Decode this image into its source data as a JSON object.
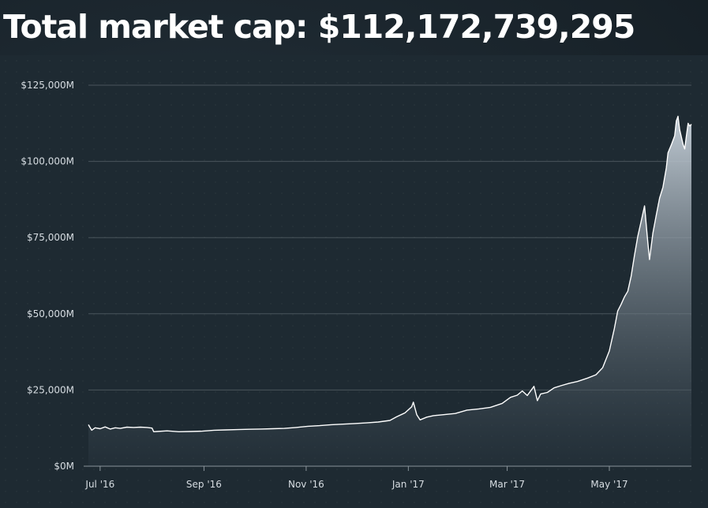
{
  "header": {
    "title": "Total market cap: $112,172,739,295"
  },
  "chart_data": {
    "type": "area",
    "title": "Total market cap: $112,172,739,295",
    "xlabel": "",
    "ylabel": "",
    "x_start": "2016-06-24",
    "x_end": "2017-06-19",
    "ylim": [
      0,
      125000
    ],
    "y_unit": "$M",
    "grid": true,
    "legend": "none",
    "x_ticks": [
      {
        "date": "2016-07-01",
        "label": "Jul '16"
      },
      {
        "date": "2016-09-01",
        "label": "Sep '16"
      },
      {
        "date": "2016-11-01",
        "label": "Nov '16"
      },
      {
        "date": "2017-01-01",
        "label": "Jan '17"
      },
      {
        "date": "2017-03-01",
        "label": "Mar '17"
      },
      {
        "date": "2017-05-01",
        "label": "May '17"
      }
    ],
    "y_ticks": [
      {
        "value": 0,
        "label": "$0M"
      },
      {
        "value": 25000,
        "label": "$25,000M"
      },
      {
        "value": 50000,
        "label": "$50,000M"
      },
      {
        "value": 75000,
        "label": "$75,000M"
      },
      {
        "value": 100000,
        "label": "$100,000M"
      },
      {
        "value": 125000,
        "label": "$125,000M"
      }
    ],
    "series": [
      {
        "name": "",
        "points": [
          [
            "2016-06-24",
            13600
          ],
          [
            "2016-06-26",
            11800
          ],
          [
            "2016-06-28",
            12600
          ],
          [
            "2016-07-01",
            12300
          ],
          [
            "2016-07-04",
            12900
          ],
          [
            "2016-07-07",
            12200
          ],
          [
            "2016-07-10",
            12600
          ],
          [
            "2016-07-13",
            12400
          ],
          [
            "2016-07-17",
            12800
          ],
          [
            "2016-07-21",
            12700
          ],
          [
            "2016-07-25",
            12800
          ],
          [
            "2016-07-29",
            12700
          ],
          [
            "2016-08-01",
            12500
          ],
          [
            "2016-08-02",
            11300
          ],
          [
            "2016-08-04",
            11400
          ],
          [
            "2016-08-10",
            11600
          ],
          [
            "2016-08-17",
            11300
          ],
          [
            "2016-08-24",
            11400
          ],
          [
            "2016-08-31",
            11500
          ],
          [
            "2016-09-07",
            11800
          ],
          [
            "2016-09-14",
            11900
          ],
          [
            "2016-09-21",
            12000
          ],
          [
            "2016-09-28",
            12100
          ],
          [
            "2016-10-05",
            12200
          ],
          [
            "2016-10-12",
            12300
          ],
          [
            "2016-10-19",
            12400
          ],
          [
            "2016-10-26",
            12700
          ],
          [
            "2016-11-02",
            13100
          ],
          [
            "2016-11-09",
            13300
          ],
          [
            "2016-11-16",
            13600
          ],
          [
            "2016-11-23",
            13800
          ],
          [
            "2016-11-30",
            14000
          ],
          [
            "2016-12-07",
            14200
          ],
          [
            "2016-12-14",
            14500
          ],
          [
            "2016-12-21",
            15000
          ],
          [
            "2016-12-25",
            16200
          ],
          [
            "2016-12-30",
            17500
          ],
          [
            "2017-01-03",
            19500
          ],
          [
            "2017-01-04",
            21000
          ],
          [
            "2017-01-06",
            16900
          ],
          [
            "2017-01-08",
            15200
          ],
          [
            "2017-01-12",
            16100
          ],
          [
            "2017-01-16",
            16600
          ],
          [
            "2017-01-22",
            16900
          ],
          [
            "2017-01-29",
            17300
          ],
          [
            "2017-02-05",
            18400
          ],
          [
            "2017-02-12",
            18800
          ],
          [
            "2017-02-19",
            19300
          ],
          [
            "2017-02-26",
            20600
          ],
          [
            "2017-03-03",
            22600
          ],
          [
            "2017-03-07",
            23300
          ],
          [
            "2017-03-10",
            24700
          ],
          [
            "2017-03-13",
            23200
          ],
          [
            "2017-03-17",
            26200
          ],
          [
            "2017-03-19",
            21500
          ],
          [
            "2017-03-21",
            23700
          ],
          [
            "2017-03-25",
            24200
          ],
          [
            "2017-03-29",
            25700
          ],
          [
            "2017-04-02",
            26400
          ],
          [
            "2017-04-07",
            27200
          ],
          [
            "2017-04-12",
            27800
          ],
          [
            "2017-04-18",
            28900
          ],
          [
            "2017-04-23",
            30000
          ],
          [
            "2017-04-27",
            32300
          ],
          [
            "2017-05-01",
            37800
          ],
          [
            "2017-05-04",
            45200
          ],
          [
            "2017-05-06",
            50900
          ],
          [
            "2017-05-08",
            53100
          ],
          [
            "2017-05-10",
            55500
          ],
          [
            "2017-05-12",
            57400
          ],
          [
            "2017-05-14",
            62300
          ],
          [
            "2017-05-16",
            69100
          ],
          [
            "2017-05-18",
            75500
          ],
          [
            "2017-05-20",
            80300
          ],
          [
            "2017-05-22",
            85400
          ],
          [
            "2017-05-24",
            73300
          ],
          [
            "2017-05-25",
            67800
          ],
          [
            "2017-05-27",
            76500
          ],
          [
            "2017-05-29",
            82300
          ],
          [
            "2017-05-31",
            88000
          ],
          [
            "2017-06-02",
            91500
          ],
          [
            "2017-06-04",
            97900
          ],
          [
            "2017-06-05",
            102800
          ],
          [
            "2017-06-07",
            105400
          ],
          [
            "2017-06-09",
            108400
          ],
          [
            "2017-06-10",
            113300
          ],
          [
            "2017-06-11",
            114800
          ],
          [
            "2017-06-12",
            110400
          ],
          [
            "2017-06-14",
            105600
          ],
          [
            "2017-06-15",
            104100
          ],
          [
            "2017-06-16",
            108300
          ],
          [
            "2017-06-17",
            112500
          ],
          [
            "2017-06-18",
            111600
          ],
          [
            "2017-06-19",
            112200
          ]
        ]
      }
    ],
    "colors": {
      "line": "#ffffff",
      "area_top": "#c9d3dc",
      "area_bottom": "#2a3741",
      "grid": "#5b666e",
      "axis": "#8a949b"
    }
  }
}
